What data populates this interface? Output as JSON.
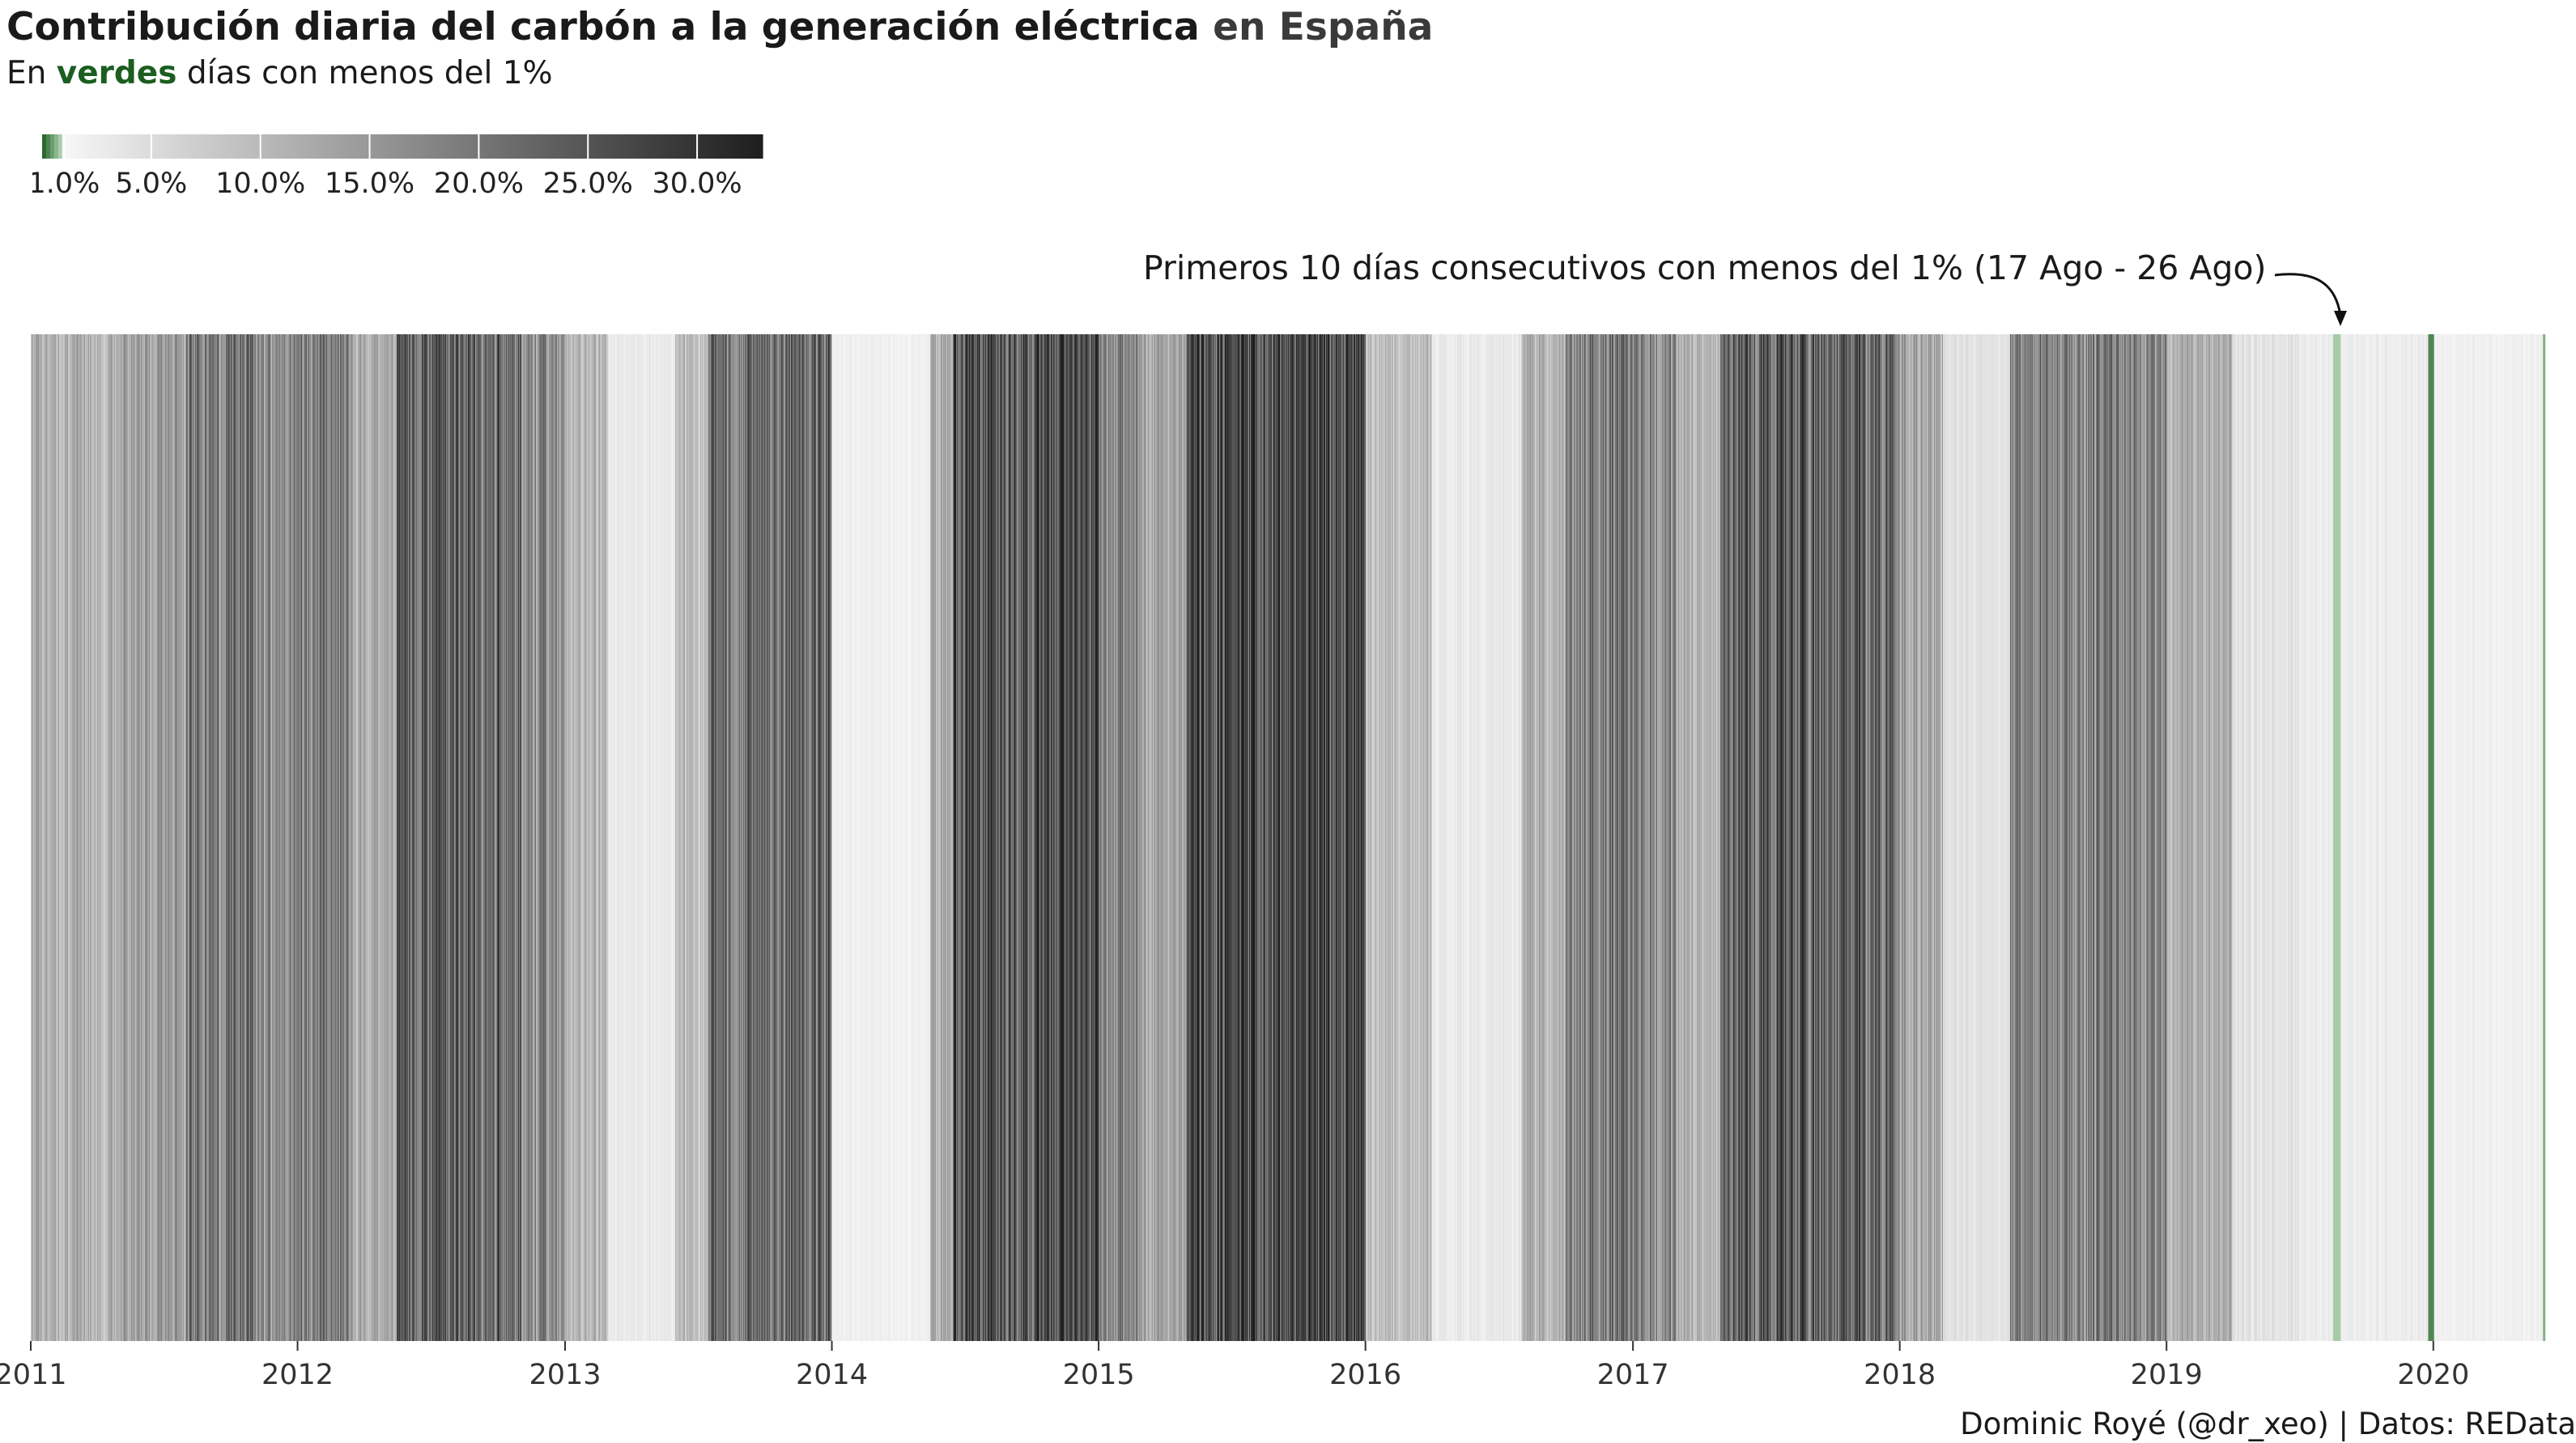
{
  "header": {
    "title_main": "Contribución diaria del carbón a la generación eléctrica",
    "title_country": "en España",
    "subtitle_prefix": "En",
    "subtitle_highlight": "verdes",
    "subtitle_rest": "días con menos del 1%"
  },
  "annotation": {
    "text": "Primeros 10 días consecutivos con menos del 1% (17 Ago - 26 Ago)"
  },
  "caption": {
    "text": "Dominic Royé (@dr_xeo) | Datos: REData"
  },
  "colors": {
    "green_dark": "#1b5e20",
    "green_mid": "#2e7d32",
    "green_light": "#c8e6c9",
    "gray_low": "#f7f7f7",
    "gray_high": "#1e1e1e"
  },
  "chart_data": {
    "type": "heatmap",
    "title": "Contribución diaria del carbón a la generación eléctrica en España",
    "subtitle": "En verdes días con menos del 1%",
    "x_range": [
      "2011-01-01",
      "2020-05-31"
    ],
    "x_ticks": [
      "2011",
      "2012",
      "2013",
      "2014",
      "2015",
      "2016",
      "2017",
      "2018",
      "2019",
      "2020"
    ],
    "legend": {
      "labels": [
        "1.0%",
        "5.0%",
        "10.0%",
        "15.0%",
        "20.0%",
        "25.0%",
        "30.0%"
      ],
      "values": [
        1,
        5,
        10,
        15,
        20,
        25,
        30
      ],
      "range": [
        0,
        33
      ],
      "green_threshold": 1
    },
    "segments": [
      {
        "start": "2011-01-01",
        "end": "2011-04-30",
        "level": 11
      },
      {
        "start": "2011-05-01",
        "end": "2011-07-31",
        "level": 14
      },
      {
        "start": "2011-08-01",
        "end": "2011-10-31",
        "level": 20
      },
      {
        "start": "2011-11-01",
        "end": "2011-12-31",
        "level": 16
      },
      {
        "start": "2012-01-01",
        "end": "2012-03-15",
        "level": 18
      },
      {
        "start": "2012-03-16",
        "end": "2012-05-15",
        "level": 12
      },
      {
        "start": "2012-05-16",
        "end": "2012-10-31",
        "level": 23
      },
      {
        "start": "2012-11-01",
        "end": "2012-12-31",
        "level": 16
      },
      {
        "start": "2013-01-01",
        "end": "2013-02-28",
        "level": 10
      },
      {
        "start": "2013-03-01",
        "end": "2013-05-31",
        "level": 3
      },
      {
        "start": "2013-06-01",
        "end": "2013-07-15",
        "level": 9
      },
      {
        "start": "2013-07-16",
        "end": "2013-12-31",
        "level": 22
      },
      {
        "start": "2014-01-01",
        "end": "2014-05-15",
        "level": 2
      },
      {
        "start": "2014-05-16",
        "end": "2014-06-15",
        "level": 12
      },
      {
        "start": "2014-06-16",
        "end": "2014-12-31",
        "level": 26
      },
      {
        "start": "2015-01-01",
        "end": "2015-02-28",
        "level": 18
      },
      {
        "start": "2015-03-01",
        "end": "2015-04-30",
        "level": 13
      },
      {
        "start": "2015-05-01",
        "end": "2015-12-31",
        "level": 27
      },
      {
        "start": "2016-01-01",
        "end": "2016-03-31",
        "level": 9
      },
      {
        "start": "2016-04-01",
        "end": "2016-07-31",
        "level": 3
      },
      {
        "start": "2016-08-01",
        "end": "2016-09-30",
        "level": 11
      },
      {
        "start": "2016-10-01",
        "end": "2016-12-31",
        "level": 19
      },
      {
        "start": "2017-01-01",
        "end": "2017-02-28",
        "level": 17
      },
      {
        "start": "2017-03-01",
        "end": "2017-04-30",
        "level": 11
      },
      {
        "start": "2017-05-01",
        "end": "2017-12-31",
        "level": 23
      },
      {
        "start": "2018-01-01",
        "end": "2018-02-28",
        "level": 13
      },
      {
        "start": "2018-03-01",
        "end": "2018-05-31",
        "level": 4
      },
      {
        "start": "2018-06-01",
        "end": "2018-12-31",
        "level": 18
      },
      {
        "start": "2019-01-01",
        "end": "2019-03-31",
        "level": 11
      },
      {
        "start": "2019-04-01",
        "end": "2019-06-30",
        "level": 4
      },
      {
        "start": "2019-07-01",
        "end": "2019-12-31",
        "level": 2.5
      },
      {
        "start": "2020-01-01",
        "end": "2020-05-31",
        "level": 2
      }
    ],
    "green_days": [
      {
        "start": "2019-08-17",
        "end": "2019-08-26",
        "level": 0.8
      },
      {
        "start": "2019-12-25",
        "end": "2020-01-01",
        "level": 0.3
      },
      {
        "start": "2020-05-30",
        "end": "2020-05-31",
        "level": 0.6
      }
    ]
  }
}
